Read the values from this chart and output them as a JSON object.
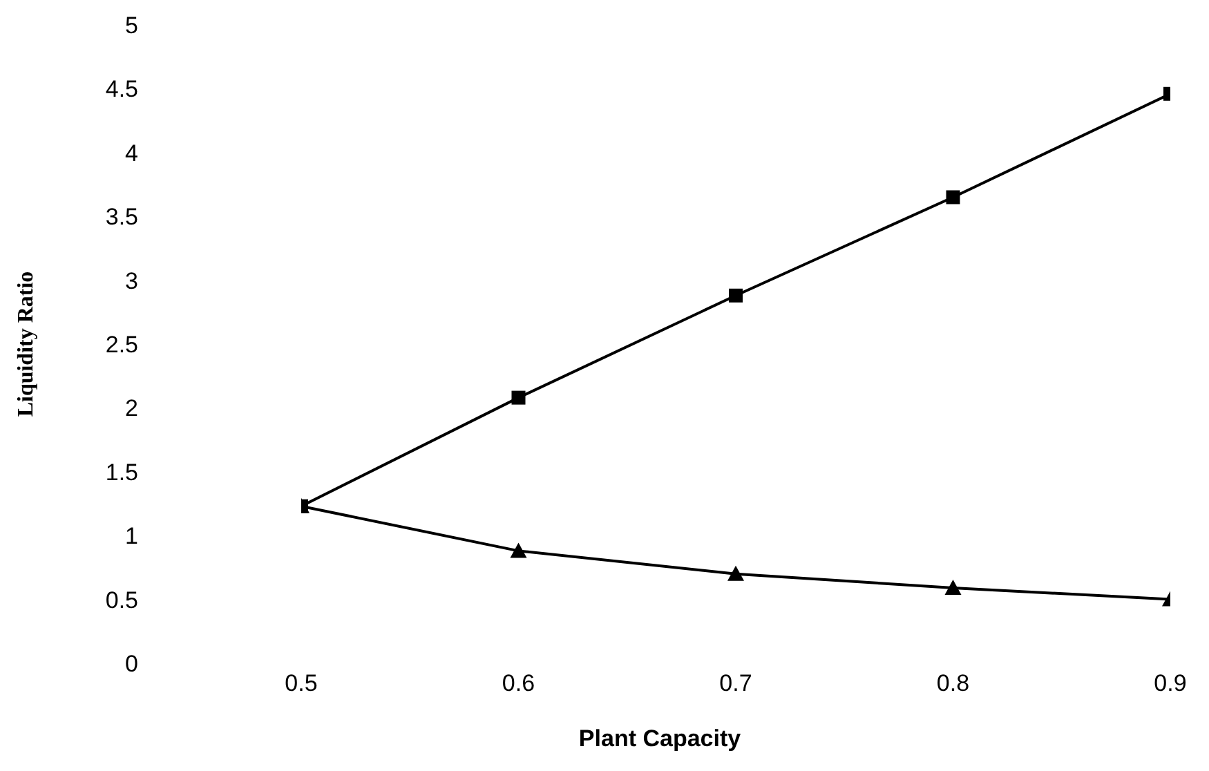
{
  "chart_data": {
    "type": "line",
    "xlabel": "Plant Capacity",
    "ylabel": "Liquidity Ratio",
    "x": [
      0.5,
      0.6,
      0.7,
      0.8,
      0.9
    ],
    "series": [
      {
        "color": "#000000",
        "marker": "square",
        "values": [
          1.23,
          2.08,
          2.88,
          3.65,
          4.46
        ]
      },
      {
        "color": "#000000",
        "marker": "triangle",
        "values": [
          1.23,
          0.88,
          0.7,
          0.59,
          0.5
        ]
      }
    ],
    "xlim": [
      0.5,
      0.9
    ],
    "xticks": [
      0.5,
      0.6,
      0.7,
      0.8,
      0.9
    ],
    "ylim": [
      0,
      5
    ],
    "yticks": [
      0,
      0.5,
      1,
      1.5,
      2,
      2.5,
      3,
      3.5,
      4,
      4.5,
      5
    ],
    "grid": false,
    "legend": false
  }
}
